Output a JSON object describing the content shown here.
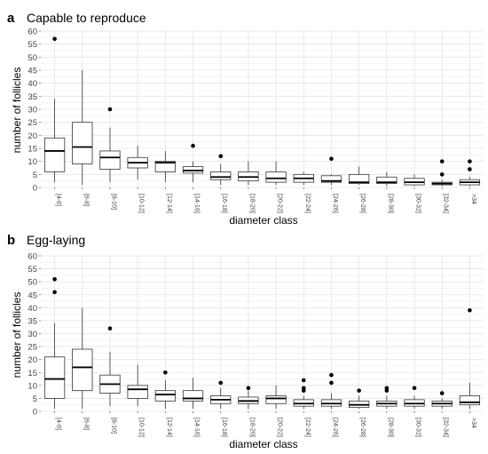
{
  "chart_data": [
    {
      "type": "boxplot",
      "panel": "a",
      "title": "Capable to reproduce",
      "xlabel": "diameter class",
      "ylabel": "number of follicles",
      "ylim": [
        0,
        60
      ],
      "yticks": [
        0,
        5,
        10,
        15,
        20,
        25,
        30,
        35,
        40,
        45,
        50,
        55,
        60
      ],
      "grid": true,
      "categories": [
        "[4-6]",
        "[6-8]",
        "[8-10]",
        "[10-12]",
        "[12-14]",
        "[14-16]",
        "[16-18]",
        "[18-20]",
        "[20-22]",
        "[22-24]",
        "[24-26]",
        "[26-28]",
        "[28-30]",
        "[30-32]",
        "[32-34]",
        ">34"
      ],
      "boxes": [
        {
          "min": 2,
          "q1": 6,
          "median": 14,
          "q3": 19,
          "max": 34,
          "outliers": [
            57
          ]
        },
        {
          "min": 1,
          "q1": 9,
          "median": 15.5,
          "q3": 25,
          "max": 45,
          "outliers": []
        },
        {
          "min": 2,
          "q1": 7,
          "median": 11.5,
          "q3": 14,
          "max": 23,
          "outliers": [
            30
          ]
        },
        {
          "min": 3,
          "q1": 7.5,
          "median": 9.5,
          "q3": 11.5,
          "max": 16,
          "outliers": []
        },
        {
          "min": 2,
          "q1": 6,
          "median": 9.5,
          "q3": 10,
          "max": 14,
          "outliers": []
        },
        {
          "min": 2,
          "q1": 5.5,
          "median": 6.5,
          "q3": 8,
          "max": 10,
          "outliers": [
            16
          ]
        },
        {
          "min": 1,
          "q1": 3,
          "median": 4,
          "q3": 6,
          "max": 9,
          "outliers": [
            12
          ]
        },
        {
          "min": 1,
          "q1": 2.5,
          "median": 4,
          "q3": 6,
          "max": 10,
          "outliers": []
        },
        {
          "min": 1,
          "q1": 2,
          "median": 3.5,
          "q3": 6,
          "max": 10,
          "outliers": []
        },
        {
          "min": 1,
          "q1": 2,
          "median": 3.5,
          "q3": 5,
          "max": 6,
          "outliers": []
        },
        {
          "min": 1,
          "q1": 2,
          "median": 2.5,
          "q3": 4.5,
          "max": 5,
          "outliers": [
            11
          ]
        },
        {
          "min": 1,
          "q1": 1.5,
          "median": 2,
          "q3": 5,
          "max": 8,
          "outliers": []
        },
        {
          "min": 0.5,
          "q1": 1.5,
          "median": 2,
          "q3": 4,
          "max": 6,
          "outliers": []
        },
        {
          "min": 0.5,
          "q1": 1,
          "median": 2,
          "q3": 3.5,
          "max": 5,
          "outliers": []
        },
        {
          "min": 0.5,
          "q1": 1,
          "median": 1.5,
          "q3": 2,
          "max": 3,
          "outliers": [
            5,
            10
          ]
        },
        {
          "min": 0.5,
          "q1": 1,
          "median": 2,
          "q3": 3,
          "max": 4,
          "outliers": [
            7,
            10
          ]
        }
      ]
    },
    {
      "type": "boxplot",
      "panel": "b",
      "title": "Egg-laying",
      "xlabel": "diameter class",
      "ylabel": "number of follicles",
      "ylim": [
        0,
        60
      ],
      "yticks": [
        0,
        5,
        10,
        15,
        20,
        25,
        30,
        35,
        40,
        45,
        50,
        55,
        60
      ],
      "grid": true,
      "categories": [
        "[4-6]",
        "[6-8]",
        "[8-10]",
        "[10-12]",
        "[12-14]",
        "[14-16]",
        "[16-18]",
        "[18-20]",
        "[20-22]",
        "[22-24]",
        "[24-26]",
        "[26-28]",
        "[28-30]",
        "[30-32]",
        "[32-34]",
        ">34"
      ],
      "boxes": [
        {
          "min": 1,
          "q1": 5,
          "median": 12.5,
          "q3": 21,
          "max": 34,
          "outliers": [
            46,
            51
          ]
        },
        {
          "min": 1,
          "q1": 8,
          "median": 17,
          "q3": 24,
          "max": 40,
          "outliers": []
        },
        {
          "min": 2,
          "q1": 7,
          "median": 10.5,
          "q3": 14,
          "max": 23,
          "outliers": [
            32
          ]
        },
        {
          "min": 2,
          "q1": 5,
          "median": 8.5,
          "q3": 10,
          "max": 18,
          "outliers": []
        },
        {
          "min": 1,
          "q1": 4,
          "median": 6.5,
          "q3": 8,
          "max": 12,
          "outliers": [
            15
          ]
        },
        {
          "min": 1,
          "q1": 4,
          "median": 5,
          "q3": 8,
          "max": 13,
          "outliers": []
        },
        {
          "min": 1,
          "q1": 3,
          "median": 4.5,
          "q3": 6,
          "max": 9,
          "outliers": [
            11
          ]
        },
        {
          "min": 1,
          "q1": 3,
          "median": 4,
          "q3": 5.5,
          "max": 8,
          "outliers": [
            9
          ]
        },
        {
          "min": 1,
          "q1": 3,
          "median": 5,
          "q3": 6,
          "max": 10,
          "outliers": []
        },
        {
          "min": 1,
          "q1": 2,
          "median": 3,
          "q3": 4.5,
          "max": 6,
          "outliers": [
            8,
            9,
            12
          ]
        },
        {
          "min": 1,
          "q1": 2,
          "median": 3,
          "q3": 4.5,
          "max": 7,
          "outliers": [
            11,
            14
          ]
        },
        {
          "min": 1,
          "q1": 1.5,
          "median": 2.5,
          "q3": 4,
          "max": 6,
          "outliers": [
            8
          ]
        },
        {
          "min": 1,
          "q1": 2,
          "median": 3,
          "q3": 4,
          "max": 6,
          "outliers": [
            8,
            9
          ]
        },
        {
          "min": 1,
          "q1": 2,
          "median": 3,
          "q3": 4.5,
          "max": 6,
          "outliers": [
            9
          ]
        },
        {
          "min": 1,
          "q1": 2,
          "median": 3,
          "q3": 4,
          "max": 5,
          "outliers": [
            7
          ]
        },
        {
          "min": 1,
          "q1": 2.5,
          "median": 3.5,
          "q3": 6,
          "max": 11,
          "outliers": [
            39
          ]
        }
      ]
    }
  ],
  "style": {
    "box_fill": "#ffffff",
    "box_stroke": "#333333",
    "median_stroke": "#000000",
    "grid_color": "#e4e4e4",
    "outlier_color": "#000000"
  }
}
